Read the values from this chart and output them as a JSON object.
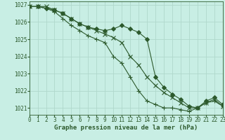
{
  "title": "Graphe pression niveau de la mer (hPa)",
  "background_color": "#c8eee4",
  "grid_color": "#b0d8cc",
  "line_color": "#2d5a2d",
  "xlim": [
    0,
    23
  ],
  "ylim": [
    1020.6,
    1027.2
  ],
  "yticks": [
    1021,
    1022,
    1023,
    1024,
    1025,
    1026,
    1027
  ],
  "xticks": [
    0,
    1,
    2,
    3,
    4,
    5,
    6,
    7,
    8,
    9,
    10,
    11,
    12,
    13,
    14,
    15,
    16,
    17,
    18,
    19,
    20,
    21,
    22,
    23
  ],
  "series": [
    [
      1026.9,
      1026.9,
      1026.8,
      1026.6,
      1026.2,
      1025.8,
      1025.5,
      1025.2,
      1025.0,
      1024.8,
      1024.0,
      1023.6,
      1022.8,
      1022.0,
      1021.4,
      1021.2,
      1021.0,
      1021.0,
      1020.9,
      1020.8,
      1021.0,
      1021.3,
      1021.4,
      1021.1
    ],
    [
      1026.9,
      1026.9,
      1026.9,
      1026.7,
      1026.5,
      1026.2,
      1025.9,
      1025.7,
      1025.5,
      1025.3,
      1025.1,
      1024.8,
      1024.0,
      1023.5,
      1022.8,
      1022.3,
      1021.9,
      1021.6,
      1021.3,
      1021.0,
      1021.0,
      1021.3,
      1021.5,
      1021.1
    ],
    [
      1026.9,
      1026.9,
      1026.8,
      1026.7,
      1026.5,
      1026.2,
      1025.9,
      1025.7,
      1025.6,
      1025.5,
      1025.6,
      1025.8,
      1025.6,
      1025.4,
      1025.0,
      1022.8,
      1022.2,
      1021.8,
      1021.5,
      1021.1,
      1021.0,
      1021.4,
      1021.6,
      1021.2
    ]
  ],
  "markers": [
    "+",
    "x",
    "D"
  ],
  "marker_sizes": [
    4,
    4,
    3
  ],
  "linewidths": [
    0.8,
    0.8,
    0.8
  ],
  "title_color": "#2d5a2d",
  "tick_color": "#2d5a2d",
  "axis_color": "#2d5a2d",
  "title_fontsize": 6.5,
  "tick_fontsize": 5.5
}
